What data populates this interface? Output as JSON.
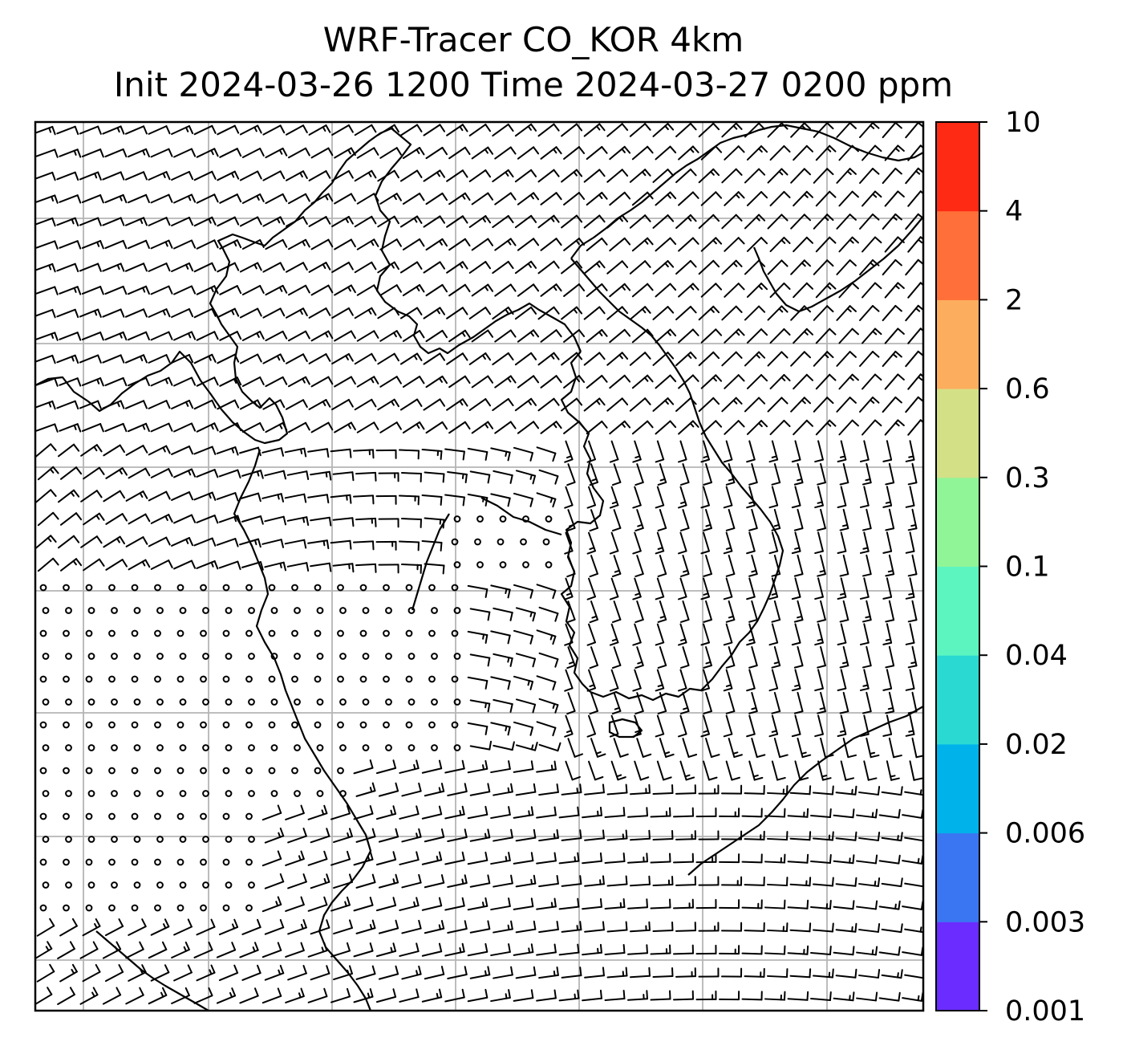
{
  "title_line1": "WRF-Tracer CO_KOR 4km",
  "title_line2": "Init 2024-03-26 1200 Time 2024-03-27 0200 ppm",
  "colorbar": {
    "levels": [
      "0.001",
      "0.003",
      "0.006",
      "0.02",
      "0.04",
      "0.1",
      "0.3",
      "0.6",
      "2",
      "4",
      "10"
    ],
    "colors": [
      "#6a2cff",
      "#3a76f2",
      "#00b2ea",
      "#2ad9d2",
      "#5cf5c0",
      "#90f597",
      "#d4e086",
      "#fcad5e",
      "#ff6f39",
      "#ff2a14"
    ]
  },
  "map": {
    "content": "wind barbs over Korea region",
    "gridlines": true,
    "barb_color": "#000000",
    "coast_color": "#000000",
    "grid_color": "#b5b5b5"
  }
}
